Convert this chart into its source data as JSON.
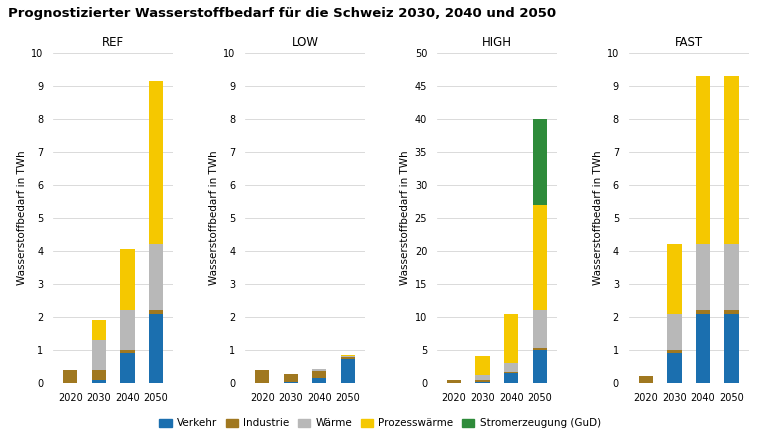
{
  "title": "Prognostizierter Wasserstoffbedarf für die Schweiz 2030, 2040 und 2050",
  "scenarios": [
    "REF",
    "LOW",
    "HIGH",
    "FAST"
  ],
  "years": [
    "2020",
    "2030",
    "2040",
    "2050"
  ],
  "ylabel": "Wasserstoffbedarf in TWh",
  "ylims": [
    10,
    10,
    50,
    10
  ],
  "yticks": [
    [
      0,
      1,
      2,
      3,
      4,
      5,
      6,
      7,
      8,
      9,
      10
    ],
    [
      0,
      1,
      2,
      3,
      4,
      5,
      6,
      7,
      8,
      9,
      10
    ],
    [
      0,
      5,
      10,
      15,
      20,
      25,
      30,
      35,
      40,
      45,
      50
    ],
    [
      0,
      1,
      2,
      3,
      4,
      5,
      6,
      7,
      8,
      9,
      10
    ]
  ],
  "categories": [
    "Verkehr",
    "Industrie",
    "Wärme",
    "Prozesswärme",
    "Stromerzeugung (GuD)"
  ],
  "colors": [
    "#1B6FAF",
    "#A07820",
    "#B8B8B8",
    "#F5C800",
    "#2E8B3A"
  ],
  "scenario_data": {
    "REF": {
      "Verkehr": [
        0.0,
        0.1,
        0.9,
        2.1
      ],
      "Industrie": [
        0.4,
        0.3,
        0.1,
        0.1
      ],
      "Waerme": [
        0.0,
        0.9,
        1.2,
        2.0
      ],
      "Prozesswaerme": [
        0.0,
        0.6,
        1.85,
        4.95
      ],
      "Stromerzeugung": [
        0.0,
        0.0,
        0.0,
        0.0
      ]
    },
    "LOW": {
      "Verkehr": [
        0.0,
        0.02,
        0.15,
        0.72
      ],
      "Industrie": [
        0.38,
        0.25,
        0.22,
        0.05
      ],
      "Waerme": [
        0.0,
        0.0,
        0.05,
        0.03
      ],
      "Prozesswaerme": [
        0.0,
        0.0,
        0.0,
        0.05
      ],
      "Stromerzeugung": [
        0.0,
        0.0,
        0.0,
        0.0
      ]
    },
    "HIGH": {
      "Verkehr": [
        0.0,
        0.1,
        1.5,
        5.0
      ],
      "Industrie": [
        0.4,
        0.3,
        0.2,
        0.2
      ],
      "Waerme": [
        0.0,
        0.8,
        1.3,
        5.8
      ],
      "Prozesswaerme": [
        0.0,
        2.8,
        7.5,
        16.0
      ],
      "Stromerzeugung": [
        0.0,
        0.0,
        0.0,
        13.0
      ]
    },
    "FAST": {
      "Verkehr": [
        0.0,
        0.9,
        2.1,
        2.1
      ],
      "Industrie": [
        0.2,
        0.1,
        0.1,
        0.1
      ],
      "Waerme": [
        0.0,
        1.1,
        2.0,
        2.0
      ],
      "Prozesswaerme": [
        0.0,
        2.1,
        5.1,
        5.1
      ],
      "Stromerzeugung": [
        0.0,
        0.0,
        0.0,
        0.0
      ]
    }
  },
  "background_color": "#FFFFFF",
  "grid_color": "#CCCCCC",
  "title_fontsize": 9.5,
  "axis_fontsize": 7.5,
  "tick_fontsize": 7,
  "legend_fontsize": 7.5
}
